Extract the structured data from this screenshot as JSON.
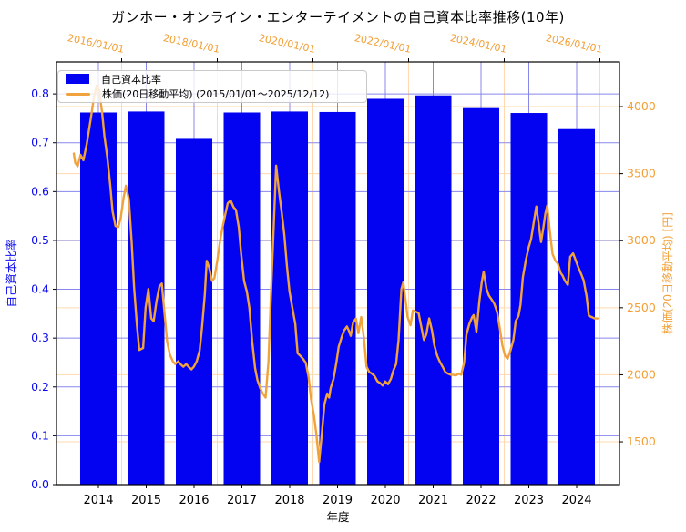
{
  "title": "ガンホー・オンライン・エンターテイメントの自己資本比率推移(10年)",
  "legend": {
    "position": "upper left",
    "items": [
      {
        "label": "自己資本比率",
        "marker": "patch",
        "color": "#0303f2"
      },
      {
        "label": "株価(20日移動平均) (2015/01/01～2025/12/12)",
        "marker": "line",
        "color": "#f0a23c"
      }
    ]
  },
  "axes": {
    "left": {
      "label": "自己資本比率",
      "color": "#0b0bf0",
      "ticks": [
        0.0,
        0.1,
        0.2,
        0.3,
        0.4,
        0.5,
        0.6,
        0.7,
        0.8
      ],
      "ylim": [
        0,
        0.8655
      ],
      "grid_color": "#8787eb"
    },
    "right": {
      "label": "株価(20日移動平均) [円]",
      "color": "#f2a037",
      "ticks": [
        1500,
        2000,
        2500,
        3000,
        3500,
        4000
      ],
      "ylim": [
        1181,
        4333
      ],
      "grid_color": "#ffd9ae"
    },
    "bottom": {
      "label": "年度",
      "color": "#000000",
      "ticks": [
        2014,
        2015,
        2016,
        2017,
        2018,
        2019,
        2020,
        2021,
        2022,
        2023,
        2024
      ],
      "xlim": [
        2013.124,
        2024.895
      ]
    },
    "top": {
      "color": "#f2a037",
      "ticks": [
        {
          "label": "2016/01/01",
          "t": 1
        },
        {
          "label": "2018/01/01",
          "t": 3
        },
        {
          "label": "2020/01/01",
          "t": 5
        },
        {
          "label": "2022/01/01",
          "t": 7
        },
        {
          "label": "2024/01/01",
          "t": 9
        },
        {
          "label": "2026/01/01",
          "t": 11
        }
      ],
      "xlim": [
        -0.362,
        11.41
      ],
      "t_unit": "years since 2015/01/01"
    }
  },
  "chart_data": {
    "type": "combo",
    "bar_series": {
      "name": "自己資本比率",
      "axis": "left",
      "color": "#0303f2",
      "bar_width_years": 0.762,
      "categories": [
        2014,
        2015,
        2016,
        2017,
        2018,
        2019,
        2020,
        2021,
        2022,
        2023,
        2024
      ],
      "values": [
        0.762,
        0.764,
        0.708,
        0.762,
        0.764,
        0.763,
        0.79,
        0.797,
        0.771,
        0.761,
        0.728
      ]
    },
    "line_series": {
      "name": "株価(20日移動平均)",
      "axis": "right",
      "color": "#f0a23c",
      "x_unit": "years since 2015/01/01",
      "date_range": "2015/01/01～2025/12/12",
      "points": [
        [
          0,
          3650
        ],
        [
          0.03,
          3580
        ],
        [
          0.08,
          3555
        ],
        [
          0.14,
          3640
        ],
        [
          0.2,
          3600
        ],
        [
          0.27,
          3720
        ],
        [
          0.35,
          3900
        ],
        [
          0.42,
          4070
        ],
        [
          0.48,
          4160
        ],
        [
          0.53,
          4120
        ],
        [
          0.59,
          3960
        ],
        [
          0.64,
          3780
        ],
        [
          0.7,
          3620
        ],
        [
          0.76,
          3420
        ],
        [
          0.81,
          3220
        ],
        [
          0.87,
          3110
        ],
        [
          0.93,
          3100
        ],
        [
          0.98,
          3170
        ],
        [
          1.04,
          3320
        ],
        [
          1.09,
          3410
        ],
        [
          1.15,
          3310
        ],
        [
          1.21,
          2990
        ],
        [
          1.26,
          2650
        ],
        [
          1.32,
          2370
        ],
        [
          1.37,
          2185
        ],
        [
          1.45,
          2200
        ],
        [
          1.5,
          2500
        ],
        [
          1.56,
          2640
        ],
        [
          1.62,
          2420
        ],
        [
          1.67,
          2400
        ],
        [
          1.73,
          2550
        ],
        [
          1.79,
          2660
        ],
        [
          1.84,
          2680
        ],
        [
          1.9,
          2450
        ],
        [
          1.95,
          2250
        ],
        [
          2.01,
          2150
        ],
        [
          2.07,
          2100
        ],
        [
          2.12,
          2080
        ],
        [
          2.18,
          2100
        ],
        [
          2.23,
          2080
        ],
        [
          2.29,
          2060
        ],
        [
          2.35,
          2080
        ],
        [
          2.4,
          2060
        ],
        [
          2.46,
          2040
        ],
        [
          2.51,
          2060
        ],
        [
          2.57,
          2100
        ],
        [
          2.63,
          2180
        ],
        [
          2.68,
          2350
        ],
        [
          2.74,
          2600
        ],
        [
          2.78,
          2850
        ],
        [
          2.83,
          2800
        ],
        [
          2.89,
          2700
        ],
        [
          2.94,
          2720
        ],
        [
          3,
          2850
        ],
        [
          3.06,
          3000
        ],
        [
          3.11,
          3100
        ],
        [
          3.17,
          3200
        ],
        [
          3.22,
          3280
        ],
        [
          3.28,
          3300
        ],
        [
          3.34,
          3250
        ],
        [
          3.39,
          3230
        ],
        [
          3.45,
          3100
        ],
        [
          3.5,
          2900
        ],
        [
          3.56,
          2700
        ],
        [
          3.62,
          2620
        ],
        [
          3.67,
          2500
        ],
        [
          3.73,
          2250
        ],
        [
          3.79,
          2050
        ],
        [
          3.84,
          1960
        ],
        [
          3.9,
          1900
        ],
        [
          3.95,
          1860
        ],
        [
          4.01,
          1830
        ],
        [
          4.07,
          2100
        ],
        [
          4.12,
          2580
        ],
        [
          4.18,
          3100
        ],
        [
          4.23,
          3560
        ],
        [
          4.29,
          3370
        ],
        [
          4.35,
          3200
        ],
        [
          4.4,
          3050
        ],
        [
          4.46,
          2800
        ],
        [
          4.51,
          2620
        ],
        [
          4.57,
          2500
        ],
        [
          4.63,
          2380
        ],
        [
          4.68,
          2160
        ],
        [
          4.74,
          2140
        ],
        [
          4.79,
          2120
        ],
        [
          4.85,
          2090
        ],
        [
          4.91,
          1980
        ],
        [
          4.96,
          1820
        ],
        [
          5.02,
          1700
        ],
        [
          5.07,
          1560
        ],
        [
          5.13,
          1350
        ],
        [
          5.19,
          1580
        ],
        [
          5.24,
          1780
        ],
        [
          5.3,
          1860
        ],
        [
          5.34,
          1830
        ],
        [
          5.37,
          1900
        ],
        [
          5.43,
          1970
        ],
        [
          5.49,
          2090
        ],
        [
          5.54,
          2210
        ],
        [
          5.6,
          2280
        ],
        [
          5.65,
          2330
        ],
        [
          5.71,
          2360
        ],
        [
          5.75,
          2330
        ],
        [
          5.79,
          2290
        ],
        [
          5.84,
          2390
        ],
        [
          5.9,
          2420
        ],
        [
          5.95,
          2310
        ],
        [
          6.01,
          2430
        ],
        [
          6.07,
          2260
        ],
        [
          6.12,
          2060
        ],
        [
          6.18,
          2020
        ],
        [
          6.23,
          2010
        ],
        [
          6.29,
          1990
        ],
        [
          6.35,
          1950
        ],
        [
          6.4,
          1940
        ],
        [
          6.46,
          1920
        ],
        [
          6.51,
          1950
        ],
        [
          6.57,
          1930
        ],
        [
          6.63,
          1970
        ],
        [
          6.68,
          2030
        ],
        [
          6.74,
          2080
        ],
        [
          6.79,
          2260
        ],
        [
          6.85,
          2640
        ],
        [
          6.89,
          2690
        ],
        [
          6.94,
          2550
        ],
        [
          6.98,
          2430
        ],
        [
          7.04,
          2370
        ],
        [
          7.09,
          2480
        ],
        [
          7.15,
          2470
        ],
        [
          7.21,
          2460
        ],
        [
          7.26,
          2370
        ],
        [
          7.32,
          2260
        ],
        [
          7.37,
          2300
        ],
        [
          7.43,
          2420
        ],
        [
          7.49,
          2330
        ],
        [
          7.54,
          2220
        ],
        [
          7.6,
          2140
        ],
        [
          7.65,
          2100
        ],
        [
          7.71,
          2060
        ],
        [
          7.77,
          2020
        ],
        [
          7.82,
          2010
        ],
        [
          7.88,
          2000
        ],
        [
          7.93,
          2000
        ],
        [
          7.99,
          1995
        ],
        [
          8.05,
          2010
        ],
        [
          8.1,
          2000
        ],
        [
          8.16,
          2090
        ],
        [
          8.21,
          2300
        ],
        [
          8.27,
          2380
        ],
        [
          8.33,
          2430
        ],
        [
          8.36,
          2445
        ],
        [
          8.42,
          2320
        ],
        [
          8.48,
          2550
        ],
        [
          8.53,
          2690
        ],
        [
          8.57,
          2770
        ],
        [
          8.63,
          2640
        ],
        [
          8.68,
          2590
        ],
        [
          8.74,
          2560
        ],
        [
          8.79,
          2530
        ],
        [
          8.85,
          2470
        ],
        [
          8.91,
          2340
        ],
        [
          8.96,
          2220
        ],
        [
          9.02,
          2140
        ],
        [
          9.07,
          2120
        ],
        [
          9.13,
          2180
        ],
        [
          9.19,
          2260
        ],
        [
          9.24,
          2400
        ],
        [
          9.3,
          2440
        ],
        [
          9.34,
          2520
        ],
        [
          9.39,
          2730
        ],
        [
          9.45,
          2850
        ],
        [
          9.51,
          2950
        ],
        [
          9.56,
          3010
        ],
        [
          9.62,
          3140
        ],
        [
          9.67,
          3255
        ],
        [
          9.73,
          3100
        ],
        [
          9.77,
          2990
        ],
        [
          9.82,
          3100
        ],
        [
          9.86,
          3200
        ],
        [
          9.9,
          3262
        ],
        [
          9.95,
          3080
        ],
        [
          10.01,
          2900
        ],
        [
          10.07,
          2850
        ],
        [
          10.12,
          2830
        ],
        [
          10.18,
          2760
        ],
        [
          10.22,
          2740
        ],
        [
          10.27,
          2700
        ],
        [
          10.33,
          2670
        ],
        [
          10.38,
          2880
        ],
        [
          10.44,
          2905
        ],
        [
          10.5,
          2850
        ],
        [
          10.55,
          2800
        ],
        [
          10.61,
          2750
        ],
        [
          10.66,
          2705
        ],
        [
          10.72,
          2590
        ],
        [
          10.77,
          2440
        ],
        [
          10.83,
          2430
        ],
        [
          10.89,
          2420
        ],
        [
          10.95,
          2420
        ]
      ]
    }
  }
}
